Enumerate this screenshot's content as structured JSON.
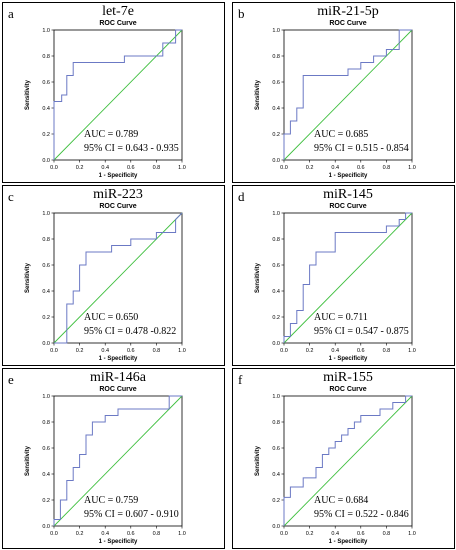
{
  "chart_data": [
    {
      "type": "line",
      "letter": "a",
      "panel_title": "let-7e",
      "title": "ROC Curve",
      "xlabel": "1 - Specificity",
      "ylabel": "Sensitivity",
      "xlim": [
        0,
        1
      ],
      "ylim": [
        0,
        1
      ],
      "ticks": [
        "0.0",
        "0.2",
        "0.4",
        "0.6",
        "0.8",
        "1.0"
      ],
      "auc_text": "AUC = 0.789",
      "ci_text": "95% CI = 0.643 - 0.935",
      "series": [
        {
          "x": [
            0,
            0,
            0.06,
            0.06,
            0.1,
            0.1,
            0.15,
            0.15,
            0.2,
            0.2,
            0.55,
            0.55,
            0.85,
            0.85,
            0.95,
            0.95,
            1.0
          ],
          "y": [
            0,
            0.45,
            0.45,
            0.5,
            0.5,
            0.65,
            0.65,
            0.75,
            0.75,
            0.75,
            0.75,
            0.8,
            0.8,
            0.9,
            0.9,
            1.0,
            1.0
          ]
        }
      ]
    },
    {
      "type": "line",
      "letter": "b",
      "panel_title": "miR-21-5p",
      "title": "ROC Curve",
      "xlabel": "1 - Specificity",
      "ylabel": "Sensitivity",
      "xlim": [
        0,
        1
      ],
      "ylim": [
        0,
        1
      ],
      "ticks": [
        "0.0",
        "0.2",
        "0.4",
        "0.6",
        "0.8",
        "1.0"
      ],
      "auc_text": "AUC = 0.685",
      "ci_text": "95% CI = 0.515 - 0.854",
      "series": [
        {
          "x": [
            0,
            0,
            0.05,
            0.05,
            0.1,
            0.1,
            0.15,
            0.15,
            0.5,
            0.5,
            0.6,
            0.6,
            0.7,
            0.7,
            0.8,
            0.8,
            0.9,
            0.9,
            1.0
          ],
          "y": [
            0,
            0.2,
            0.2,
            0.3,
            0.3,
            0.4,
            0.4,
            0.65,
            0.65,
            0.7,
            0.7,
            0.75,
            0.75,
            0.8,
            0.8,
            0.85,
            0.85,
            1.0,
            1.0
          ]
        }
      ]
    },
    {
      "type": "line",
      "letter": "c",
      "panel_title": "miR-223",
      "title": "ROC Curve",
      "xlabel": "1 - Specificity",
      "ylabel": "Sensitivity",
      "xlim": [
        0,
        1
      ],
      "ylim": [
        0,
        1
      ],
      "ticks": [
        "0.0",
        "0.2",
        "0.4",
        "0.6",
        "0.8",
        "1.0"
      ],
      "auc_text": "AUC = 0.650",
      "ci_text": "95% CI = 0.478 -0.822",
      "series": [
        {
          "x": [
            0,
            0.1,
            0.1,
            0.15,
            0.15,
            0.2,
            0.2,
            0.25,
            0.25,
            0.45,
            0.45,
            0.6,
            0.6,
            0.8,
            0.8,
            0.95,
            0.95,
            1.0
          ],
          "y": [
            0,
            0,
            0.3,
            0.3,
            0.4,
            0.4,
            0.6,
            0.6,
            0.7,
            0.7,
            0.75,
            0.75,
            0.8,
            0.8,
            0.85,
            0.85,
            0.95,
            1.0
          ]
        }
      ]
    },
    {
      "type": "line",
      "letter": "d",
      "panel_title": "miR-145",
      "title": "ROC Curve",
      "xlabel": "1 - Specificity",
      "ylabel": "Sensitivity",
      "xlim": [
        0,
        1
      ],
      "ylim": [
        0,
        1
      ],
      "ticks": [
        "0.0",
        "0.2",
        "0.4",
        "0.6",
        "0.8",
        "1.0"
      ],
      "auc_text": "AUC = 0.711",
      "ci_text": "95% CI = 0.547 - 0.875",
      "series": [
        {
          "x": [
            0,
            0,
            0.05,
            0.05,
            0.1,
            0.1,
            0.15,
            0.15,
            0.2,
            0.2,
            0.25,
            0.25,
            0.4,
            0.4,
            0.8,
            0.8,
            0.9,
            0.9,
            0.95,
            0.95,
            1.0
          ],
          "y": [
            0,
            0.05,
            0.05,
            0.15,
            0.15,
            0.25,
            0.25,
            0.45,
            0.45,
            0.6,
            0.6,
            0.7,
            0.7,
            0.85,
            0.85,
            0.9,
            0.9,
            0.95,
            0.95,
            1.0,
            1.0
          ]
        }
      ]
    },
    {
      "type": "line",
      "letter": "e",
      "panel_title": "miR-146a",
      "title": "ROC Curve",
      "xlabel": "1 - Specificity",
      "ylabel": "Sensitivity",
      "xlim": [
        0,
        1
      ],
      "ylim": [
        0,
        1
      ],
      "ticks": [
        "0.0",
        "0.2",
        "0.4",
        "0.6",
        "0.8",
        "1.0"
      ],
      "auc_text": "AUC = 0.759",
      "ci_text": "95% CI = 0.607 - 0.910",
      "series": [
        {
          "x": [
            0,
            0,
            0.05,
            0.05,
            0.1,
            0.1,
            0.15,
            0.15,
            0.2,
            0.2,
            0.25,
            0.25,
            0.3,
            0.3,
            0.4,
            0.4,
            0.5,
            0.5,
            0.9,
            0.9,
            1.0
          ],
          "y": [
            0,
            0.05,
            0.05,
            0.2,
            0.2,
            0.35,
            0.35,
            0.45,
            0.45,
            0.55,
            0.55,
            0.7,
            0.7,
            0.8,
            0.8,
            0.85,
            0.85,
            0.9,
            0.9,
            1.0,
            1.0
          ]
        }
      ]
    },
    {
      "type": "line",
      "letter": "f",
      "panel_title": "miR-155",
      "title": "ROC Curve",
      "xlabel": "1 - Specificity",
      "ylabel": "Sensitivity",
      "xlim": [
        0,
        1
      ],
      "ylim": [
        0,
        1
      ],
      "ticks": [
        "0.0",
        "0.2",
        "0.4",
        "0.6",
        "0.8",
        "1.0"
      ],
      "auc_text": "AUC = 0.684",
      "ci_text": "95% CI = 0.522 - 0.846",
      "series": [
        {
          "x": [
            0,
            0,
            0.05,
            0.05,
            0.15,
            0.15,
            0.25,
            0.25,
            0.3,
            0.3,
            0.35,
            0.35,
            0.4,
            0.4,
            0.45,
            0.45,
            0.5,
            0.5,
            0.55,
            0.55,
            0.6,
            0.6,
            0.75,
            0.75,
            0.85,
            0.85,
            0.95,
            0.95,
            1.0
          ],
          "y": [
            0,
            0.22,
            0.22,
            0.3,
            0.3,
            0.37,
            0.37,
            0.45,
            0.45,
            0.55,
            0.55,
            0.6,
            0.6,
            0.65,
            0.65,
            0.7,
            0.7,
            0.75,
            0.75,
            0.8,
            0.8,
            0.85,
            0.85,
            0.9,
            0.9,
            0.95,
            0.95,
            1.0,
            1.0
          ]
        }
      ]
    }
  ],
  "colors": {
    "roc_line": "#6b79c4",
    "reference_line": "#3fbf3f",
    "frame": "#000000"
  }
}
